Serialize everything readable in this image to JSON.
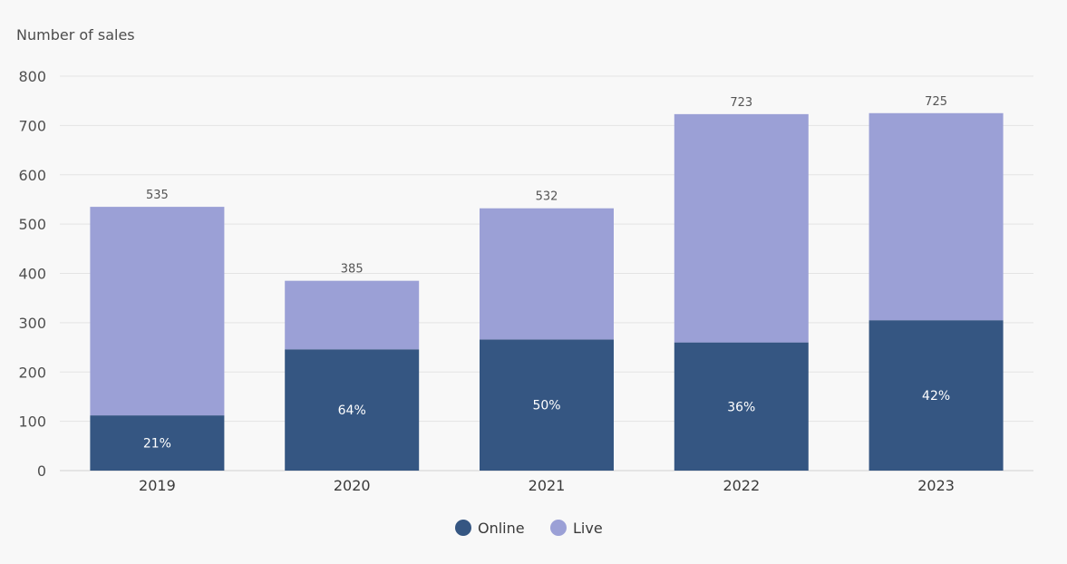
{
  "chart_data": {
    "type": "bar",
    "stacked": true,
    "title": "",
    "ylabel": "Number of sales",
    "xlabel": "",
    "ylim": [
      0,
      800
    ],
    "yticks": [
      0,
      100,
      200,
      300,
      400,
      500,
      600,
      700,
      800
    ],
    "categories": [
      "2019",
      "2020",
      "2021",
      "2022",
      "2023"
    ],
    "series": [
      {
        "name": "Online",
        "color": "#355682",
        "values": [
          112,
          246,
          266,
          260,
          305
        ]
      },
      {
        "name": "Live",
        "color": "#9ba0d6",
        "values": [
          423,
          139,
          266,
          463,
          420
        ]
      }
    ],
    "totals": [
      "535",
      "385",
      "532",
      "723",
      "725"
    ],
    "online_share_labels": [
      "21%",
      "64%",
      "50%",
      "36%",
      "42%"
    ],
    "grid": true,
    "legend_position": "bottom-center"
  }
}
